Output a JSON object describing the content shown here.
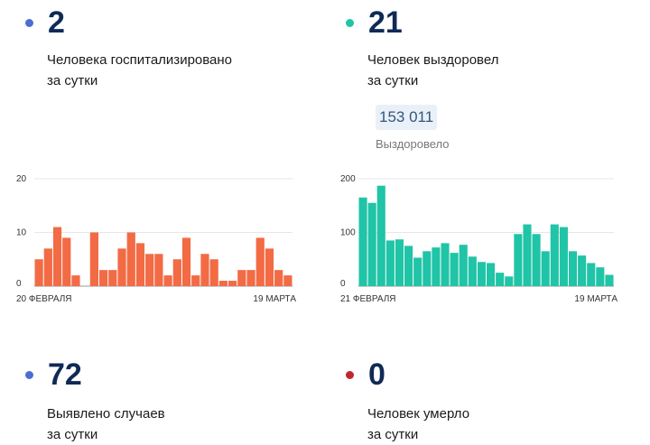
{
  "stats": {
    "hospitalized": {
      "number": "2",
      "description": "Человека госпитализировано\nза сутки",
      "dot_color": "#4a6fd1"
    },
    "recovered": {
      "number": "21",
      "description": "Человек выздоровел\nза сутки",
      "dot_color": "#20c4a6",
      "total_value": "153 011",
      "total_label": "Выздоровело"
    },
    "cases": {
      "number": "72",
      "description": "Выявлено случаев\nза сутки",
      "dot_color": "#4a6fd1"
    },
    "deaths": {
      "number": "0",
      "description": "Человек умерло\nза сутки",
      "dot_color": "#c0282e"
    }
  },
  "chart_data": [
    {
      "type": "bar",
      "x_start_label": "20 ФЕВРАЛЯ",
      "x_end_label": "19 МАРТА",
      "ylim": [
        0,
        20
      ],
      "y_ticks": [
        "0",
        "10",
        "20"
      ],
      "color": "#f26b45",
      "values": [
        5,
        7,
        11,
        9,
        2,
        0,
        10,
        3,
        3,
        7,
        10,
        8,
        6,
        6,
        2,
        5,
        9,
        2,
        6,
        5,
        1,
        1,
        3,
        3,
        9,
        7,
        3,
        2
      ]
    },
    {
      "type": "bar",
      "x_start_label": "21 ФЕВРАЛЯ",
      "x_end_label": "19 МАРТА",
      "ylim": [
        0,
        200
      ],
      "y_ticks": [
        "0",
        "100",
        "200"
      ],
      "color": "#20c4a6",
      "values": [
        165,
        155,
        187,
        85,
        87,
        75,
        53,
        65,
        72,
        80,
        62,
        77,
        55,
        45,
        43,
        25,
        18,
        97,
        115,
        97,
        65,
        115,
        110,
        65,
        57,
        43,
        35,
        21
      ]
    }
  ]
}
